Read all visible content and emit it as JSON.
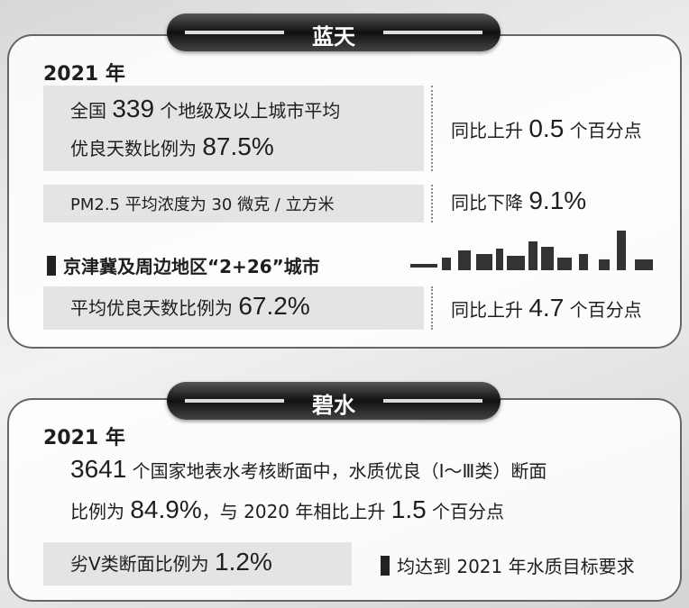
{
  "sections": [
    {
      "title": "蓝天",
      "year": "2021 年",
      "items": [
        {
          "lines": [
            [
              "全国 ",
              "339",
              " 个地级及以上城市平均"
            ],
            [
              "优良天数比例为 ",
              "87.5%"
            ]
          ],
          "change": [
            "同比上升 ",
            "0.5",
            " 个百分点"
          ]
        },
        {
          "lines": [
            [
              "PM2.5 平均浓度为 30 微克 / 立方米"
            ]
          ],
          "change": [
            "同比下降 ",
            "9.1%"
          ]
        },
        {
          "lines": [
            [
              "平均优良天数比例为 ",
              "67.2%"
            ]
          ],
          "change": [
            "同比上升 ",
            "4.7",
            " 个百分点"
          ]
        }
      ],
      "subheading": "京津冀及周边地区“2+26”城市"
    },
    {
      "title": "碧水",
      "year": "2021 年",
      "paragraph": [
        [
          "3641",
          " 个国家地表水考核断面中，水质优良（Ⅰ～Ⅲ类）断面"
        ],
        [
          "比例为 ",
          "84.9%",
          "，与 2020 年相比上升 ",
          "1.5",
          " 个百分点"
        ]
      ],
      "item": [
        "劣Ⅴ类断面比例为 ",
        "1.2%"
      ],
      "note": "均达到 2021 年水质目标要求"
    }
  ]
}
